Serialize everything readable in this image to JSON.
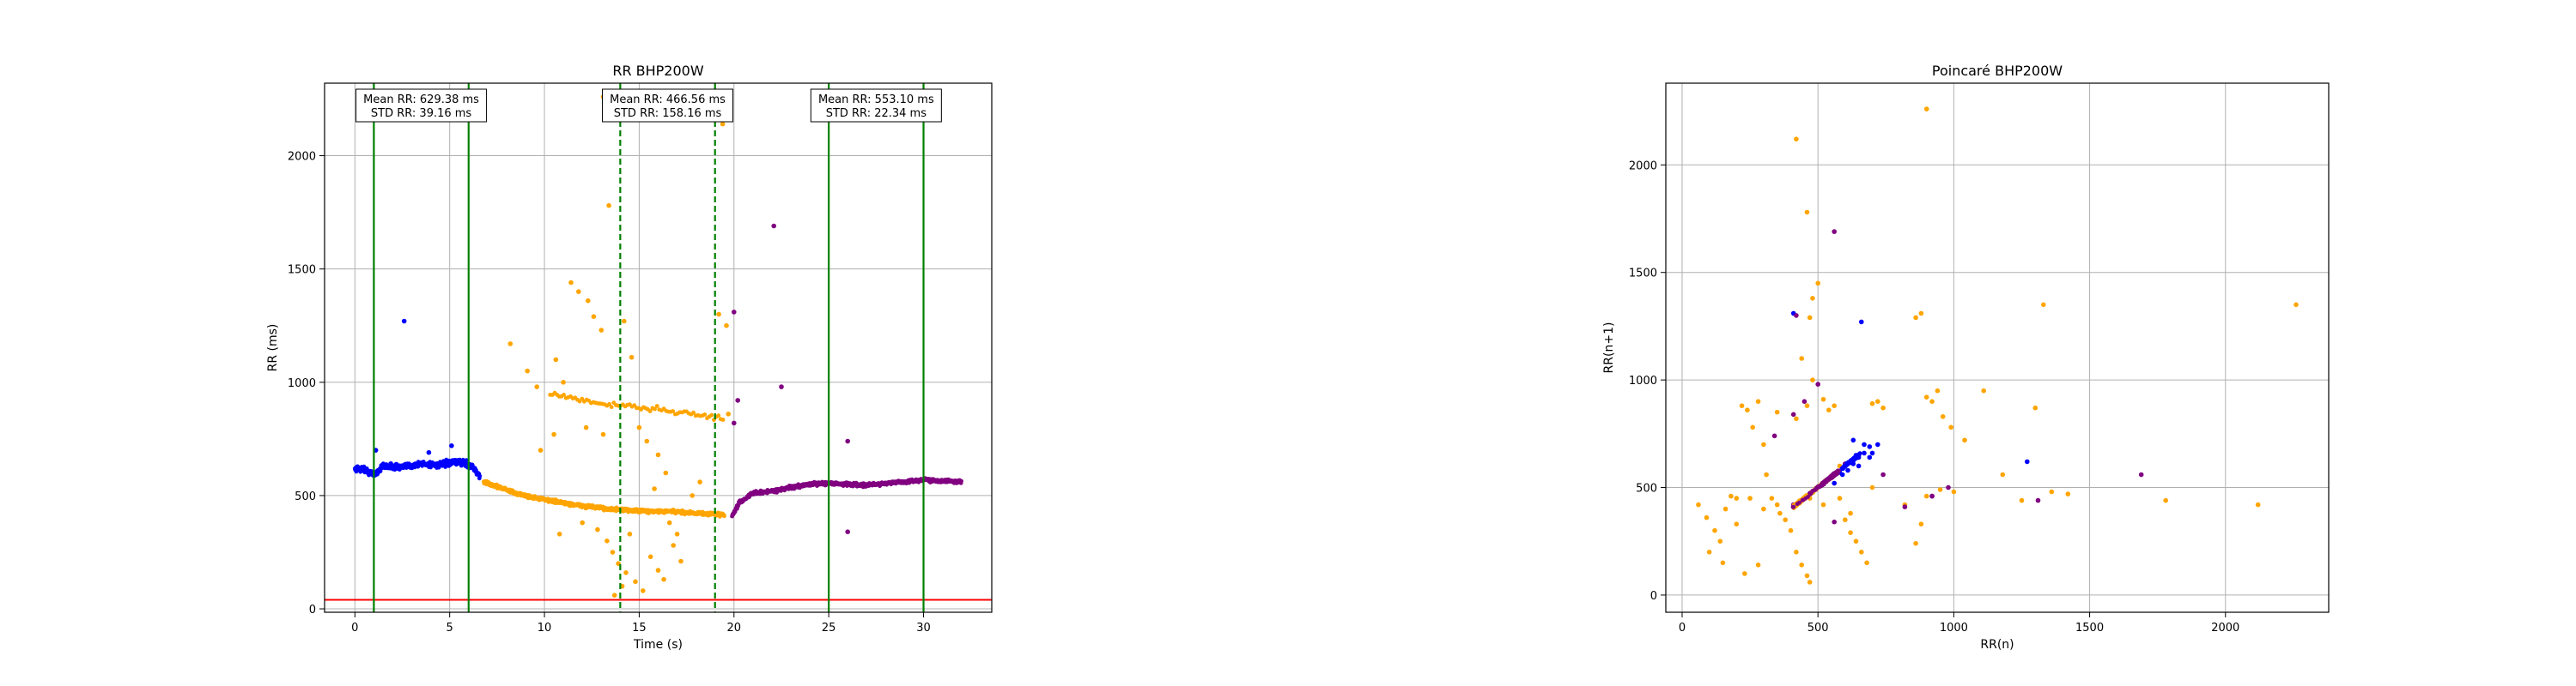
{
  "colors": {
    "first_segment": "#0000ff",
    "second_segment": "#ffa500",
    "third_segment": "#800080",
    "window_line": "#008000",
    "threshold_line": "#ff0000",
    "grid": "#b0b0b0"
  },
  "chart_data": [
    {
      "type": "scatter",
      "title": "RR BHP200W",
      "xlabel": "Time (s)",
      "ylabel": "RR (ms)",
      "xlim": [
        -1.6,
        33.6
      ],
      "ylim": [
        -15,
        2320
      ],
      "xticks": [
        0,
        5,
        10,
        15,
        20,
        25,
        30
      ],
      "yticks": [
        0,
        500,
        1000,
        1500,
        2000
      ],
      "grid": true,
      "threshold_y": 40,
      "vlines": [
        {
          "x": 1.0,
          "style": "solid"
        },
        {
          "x": 6.0,
          "style": "solid"
        },
        {
          "x": 14.0,
          "style": "dashed"
        },
        {
          "x": 19.0,
          "style": "dashed"
        },
        {
          "x": 25.0,
          "style": "solid"
        },
        {
          "x": 30.0,
          "style": "solid"
        }
      ],
      "annotations": [
        {
          "x_center": 3.5,
          "mean": "Mean RR: 629.38 ms",
          "std": "STD RR: 39.16 ms"
        },
        {
          "x_center": 16.5,
          "mean": "Mean RR: 466.56 ms",
          "std": "STD RR: 158.16 ms"
        },
        {
          "x_center": 27.5,
          "mean": "Mean RR: 553.10 ms",
          "std": "STD RR: 22.34 ms"
        }
      ],
      "series": [
        {
          "color_key": "first_segment",
          "trend": [
            [
              0.0,
              620
            ],
            [
              0.5,
              615
            ],
            [
              1.0,
              590
            ],
            [
              1.5,
              630
            ],
            [
              2.5,
              625
            ],
            [
              3.5,
              640
            ],
            [
              4.5,
              635
            ],
            [
              5.5,
              650
            ],
            [
              6.2,
              630
            ],
            [
              6.6,
              580
            ]
          ],
          "outliers": [
            [
              2.6,
              1270
            ],
            [
              5.1,
              720
            ],
            [
              3.9,
              690
            ],
            [
              1.1,
              700
            ]
          ]
        },
        {
          "color_key": "second_segment",
          "trend": [
            [
              6.8,
              560
            ],
            [
              7.5,
              540
            ],
            [
              8.5,
              510
            ],
            [
              9.5,
              490
            ],
            [
              10.5,
              475
            ],
            [
              11.5,
              460
            ],
            [
              12.5,
              450
            ],
            [
              13.5,
              440
            ],
            [
              14.5,
              435
            ],
            [
              15.5,
              430
            ],
            [
              16.5,
              430
            ],
            [
              17.5,
              425
            ],
            [
              18.5,
              420
            ],
            [
              19.5,
              415
            ]
          ],
          "upper_trend": [
            [
              10.3,
              950
            ],
            [
              11.5,
              930
            ],
            [
              12.5,
              910
            ],
            [
              13.5,
              900
            ],
            [
              14.5,
              895
            ],
            [
              15.5,
              885
            ],
            [
              16.5,
              875
            ],
            [
              17.5,
              865
            ],
            [
              18.5,
              850
            ],
            [
              19.5,
              840
            ]
          ],
          "outliers": [
            [
              8.2,
              1170
            ],
            [
              9.1,
              1050
            ],
            [
              9.6,
              980
            ],
            [
              10.6,
              1100
            ],
            [
              11.4,
              1440
            ],
            [
              11.8,
              1400
            ],
            [
              12.3,
              1360
            ],
            [
              12.6,
              1290
            ],
            [
              13.0,
              1230
            ],
            [
              13.4,
              1780
            ],
            [
              13.1,
              2260
            ],
            [
              14.2,
              1270
            ],
            [
              14.6,
              1110
            ],
            [
              15.0,
              800
            ],
            [
              15.4,
              740
            ],
            [
              16.0,
              680
            ],
            [
              16.4,
              600
            ],
            [
              12.8,
              350
            ],
            [
              13.3,
              300
            ],
            [
              13.6,
              250
            ],
            [
              13.9,
              200
            ],
            [
              14.3,
              160
            ],
            [
              14.8,
              120
            ],
            [
              15.2,
              80
            ],
            [
              15.6,
              230
            ],
            [
              16.0,
              170
            ],
            [
              16.3,
              130
            ],
            [
              16.8,
              280
            ],
            [
              17.2,
              210
            ],
            [
              13.7,
              60
            ],
            [
              14.1,
              100
            ],
            [
              10.8,
              330
            ],
            [
              12.0,
              380
            ],
            [
              19.2,
              1300
            ],
            [
              19.6,
              1250
            ],
            [
              19.4,
              2140
            ],
            [
              19.7,
              860
            ],
            [
              15.8,
              530
            ],
            [
              14.5,
              330
            ],
            [
              16.6,
              380
            ],
            [
              17.0,
              330
            ],
            [
              13.1,
              770
            ],
            [
              12.2,
              800
            ],
            [
              11.0,
              1000
            ],
            [
              10.5,
              770
            ],
            [
              9.8,
              700
            ],
            [
              18.2,
              560
            ],
            [
              17.8,
              500
            ]
          ]
        },
        {
          "color_key": "third_segment",
          "trend": [
            [
              19.9,
              410
            ],
            [
              20.3,
              470
            ],
            [
              21.0,
              510
            ],
            [
              22.0,
              520
            ],
            [
              23.0,
              535
            ],
            [
              24.0,
              550
            ],
            [
              25.0,
              555
            ],
            [
              26.0,
              550
            ],
            [
              27.0,
              545
            ],
            [
              28.0,
              555
            ],
            [
              29.0,
              560
            ],
            [
              30.0,
              570
            ],
            [
              31.0,
              565
            ],
            [
              32.0,
              560
            ]
          ],
          "outliers": [
            [
              20.0,
              1310
            ],
            [
              20.2,
              920
            ],
            [
              20.0,
              820
            ],
            [
              22.1,
              1690
            ],
            [
              22.5,
              980
            ],
            [
              26.0,
              740
            ],
            [
              26.0,
              340
            ]
          ]
        }
      ]
    },
    {
      "type": "scatter",
      "title": "Poincaré BHP200W",
      "xlabel": "RR(n)",
      "ylabel": "RR(n+1)",
      "xlim": [
        -60,
        2380
      ],
      "ylim": [
        -80,
        2380
      ],
      "xticks": [
        0,
        500,
        1000,
        1500,
        2000
      ],
      "yticks": [
        0,
        500,
        1000,
        1500,
        2000
      ],
      "grid": true,
      "points": [
        {
          "color_key": "second_segment",
          "xy": [
            [
              60,
              420
            ],
            [
              90,
              360
            ],
            [
              120,
              300
            ],
            [
              140,
              250
            ],
            [
              160,
              400
            ],
            [
              180,
              460
            ],
            [
              200,
              330
            ],
            [
              220,
              880
            ],
            [
              240,
              860
            ],
            [
              260,
              780
            ],
            [
              300,
              700
            ],
            [
              310,
              560
            ],
            [
              330,
              450
            ],
            [
              350,
              420
            ],
            [
              360,
              380
            ],
            [
              380,
              350
            ],
            [
              400,
              300
            ],
            [
              420,
              200
            ],
            [
              440,
              140
            ],
            [
              460,
              90
            ],
            [
              470,
              60
            ],
            [
              420,
              2120
            ],
            [
              460,
              1780
            ],
            [
              500,
              1450
            ],
            [
              480,
              1380
            ],
            [
              470,
              1290
            ],
            [
              440,
              1100
            ],
            [
              480,
              1000
            ],
            [
              520,
              910
            ],
            [
              540,
              860
            ],
            [
              560,
              880
            ],
            [
              580,
              600
            ],
            [
              560,
              520
            ],
            [
              580,
              450
            ],
            [
              600,
              350
            ],
            [
              620,
              290
            ],
            [
              640,
              250
            ],
            [
              660,
              200
            ],
            [
              680,
              150
            ],
            [
              700,
              890
            ],
            [
              720,
              900
            ],
            [
              740,
              870
            ],
            [
              860,
              1290
            ],
            [
              880,
              1310
            ],
            [
              900,
              920
            ],
            [
              920,
              900
            ],
            [
              940,
              950
            ],
            [
              960,
              830
            ],
            [
              990,
              780
            ],
            [
              1040,
              720
            ],
            [
              1110,
              950
            ],
            [
              1180,
              560
            ],
            [
              1250,
              440
            ],
            [
              1300,
              870
            ],
            [
              1330,
              1350
            ],
            [
              1360,
              480
            ],
            [
              1420,
              470
            ],
            [
              1780,
              440
            ],
            [
              2120,
              420
            ],
            [
              2260,
              1350
            ],
            [
              900,
              2260
            ],
            [
              100,
              200
            ],
            [
              150,
              150
            ],
            [
              230,
              100
            ],
            [
              280,
              140
            ],
            [
              250,
              450
            ],
            [
              300,
              400
            ],
            [
              200,
              450
            ],
            [
              280,
              900
            ],
            [
              350,
              850
            ],
            [
              420,
              820
            ],
            [
              460,
              880
            ],
            [
              470,
              450
            ],
            [
              520,
              420
            ],
            [
              620,
              380
            ],
            [
              700,
              500
            ],
            [
              650,
              640
            ],
            [
              600,
              600
            ],
            [
              820,
              420
            ],
            [
              900,
              460
            ],
            [
              950,
              490
            ],
            [
              1000,
              480
            ],
            [
              880,
              330
            ],
            [
              860,
              240
            ]
          ]
        },
        {
          "color_key": "first_segment",
          "xy": [
            [
              560,
              520
            ],
            [
              590,
              560
            ],
            [
              610,
              580
            ],
            [
              630,
              610
            ],
            [
              650,
              640
            ],
            [
              670,
              660
            ],
            [
              690,
              690
            ],
            [
              670,
              700
            ],
            [
              640,
              650
            ],
            [
              620,
              620
            ],
            [
              600,
              600
            ],
            [
              580,
              570
            ],
            [
              1270,
              620
            ],
            [
              660,
              1270
            ],
            [
              410,
              1310
            ],
            [
              630,
              720
            ],
            [
              690,
              640
            ],
            [
              720,
              700
            ],
            [
              700,
              660
            ],
            [
              650,
              600
            ]
          ]
        },
        {
          "color_key": "third_segment",
          "xy": [
            [
              410,
              420
            ],
            [
              450,
              450
            ],
            [
              480,
              480
            ],
            [
              510,
              510
            ],
            [
              530,
              530
            ],
            [
              550,
              550
            ],
            [
              570,
              570
            ],
            [
              590,
              590
            ],
            [
              600,
              610
            ],
            [
              820,
              410
            ],
            [
              920,
              460
            ],
            [
              980,
              500
            ],
            [
              1310,
              440
            ],
            [
              1690,
              560
            ],
            [
              560,
              1690
            ],
            [
              420,
              1300
            ],
            [
              410,
              840
            ],
            [
              450,
              900
            ],
            [
              500,
              980
            ],
            [
              920,
              460
            ],
            [
              340,
              740
            ],
            [
              560,
              340
            ],
            [
              740,
              560
            ]
          ]
        }
      ]
    }
  ]
}
